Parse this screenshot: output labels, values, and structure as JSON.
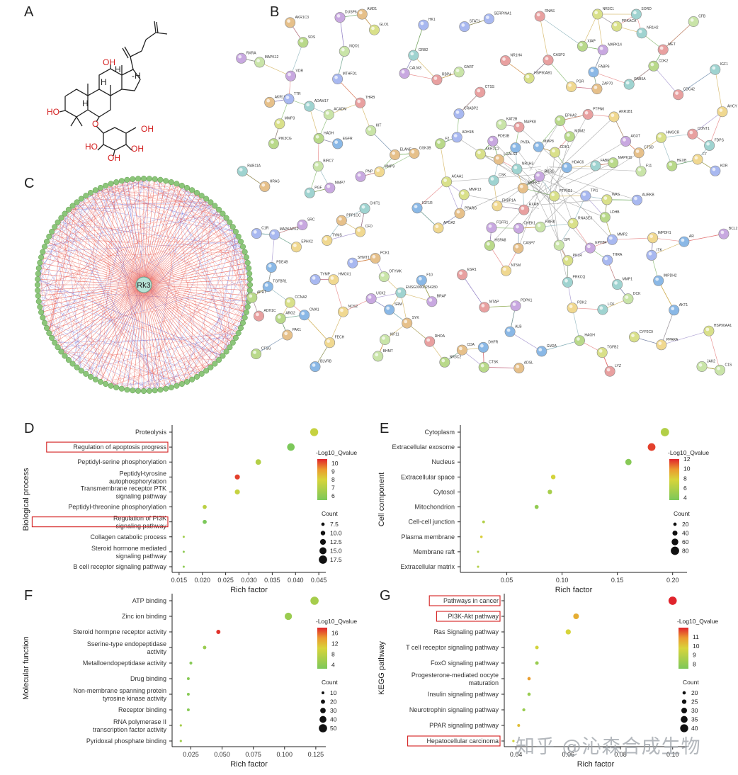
{
  "panel_letters": {
    "a": "A",
    "b": "B",
    "c": "C",
    "d": "D",
    "e": "E",
    "f": "F",
    "g": "G"
  },
  "molecule": {
    "oh_labels": [
      "OH",
      "HO",
      "OH",
      "HO",
      "OH",
      "OH"
    ],
    "h_labels": [
      "H",
      "H",
      "H",
      "-H"
    ],
    "o_label": "O"
  },
  "hub_label": "Rk3",
  "ppi_nodes": [
    "FABP6",
    "HADH",
    "ACAA1",
    "PPARG",
    "VDR",
    "FABP4",
    "NR1H4",
    "SERPINA1",
    "F11",
    "FKBP1A",
    "CMA1",
    "LDHB",
    "PKLR",
    "PCK1",
    "RXRA",
    "NR1H3",
    "THRB",
    "THRA",
    "ACADM",
    "APOA2",
    "ALB",
    "F2",
    "TGFB2",
    "CASP7",
    "MMP7",
    "MMP1",
    "RNAS",
    "TPI1",
    "GPI",
    "PPARA",
    "TGFBR1",
    "XIAP",
    "MMP3",
    "ELANE",
    "RXRG",
    "NR1H2",
    "RXRB",
    "MMP2",
    "BIRC7",
    "MMP9",
    "MMP8",
    "CTSG",
    "RNASE3",
    "AKR1C1",
    "PDE3B",
    "IGF1",
    "CASP3",
    "CRABP2",
    "RARA",
    "PDK2",
    "IGF1R",
    "EPHA2",
    "AKR1C2",
    "AKR1C3",
    "PDPK1",
    "PRKCQ",
    "RHOA",
    "HK1",
    "KAT2B",
    "PGR",
    "AKT1",
    "PIK3CG",
    "PTPN11",
    "SYK",
    "DUSP6",
    "CSK",
    "ADH1C",
    "ADH1B",
    "CFB",
    "CFD",
    "HDAC6",
    "NR3C2",
    "HSP90AA1",
    "MAPK1",
    "SRC",
    "GRB2",
    "MAPK8",
    "MAPKAPK2",
    "MAPK12",
    "IMPDH1",
    "IMPDH2",
    "HSPA8",
    "HSP90AB1",
    "ZAP70",
    "MAPK14",
    "SORD",
    "RBP4",
    "TTR",
    "BHMT",
    "AHCY",
    "AR",
    "MDM2",
    "NR3C1",
    "HRAS",
    "FGFR1",
    "LCK",
    "MET",
    "STAT1",
    "JAK2",
    "HMOX1",
    "BLVRB",
    "CTSK",
    "MMP13",
    "GSK3B",
    "CHEK1",
    "RAB11A",
    "ESR1",
    "KDR",
    "NQO1",
    "AKR1B1",
    "GM2A",
    "HEXB",
    "CDK1",
    "ADSL",
    "BCL2",
    "RAB5A",
    "CDC42",
    "ITK",
    "KIT",
    "FECH",
    "DHFR",
    "CDK2",
    "CCNA2",
    "PPP1CC",
    "BRAF",
    "PGF",
    "PTPN6",
    "AURKB",
    "KIF11",
    "NOS2",
    "EGFR",
    "MAPK10",
    "WAS",
    "PAK1",
    "EPHB4",
    "ENSG00000254280",
    "CONT1",
    "MTHFD1",
    "GART",
    "TYMS",
    "PNTA",
    "ARG2",
    "PRKACA",
    "LGALS3",
    "CALM3",
    "ADAM17",
    "CTSS",
    "SHMT1",
    "OTYMK",
    "NT5M",
    "PDE4B",
    "HAGH",
    "GLO1",
    "CTSD",
    "AGXT",
    "FDPS",
    "MTAP",
    "TYMP",
    "DCK",
    "F7",
    "F10",
    "SDS",
    "HMGCR",
    "CDA",
    "PNP",
    "CHIT1",
    "LYZ",
    "C1R",
    "C1S",
    "EPHX2",
    "SRM",
    "APRT",
    "CYP2C9",
    "AMD1",
    "UCK2"
  ],
  "chart_data": [
    {
      "panel": "D",
      "type": "scatter",
      "xlabel": "Rich factor",
      "ylabel": "Biological process",
      "xticks": [
        "0.015",
        "0.020",
        "0.025",
        "0.030",
        "0.035",
        "0.040",
        "0.045"
      ],
      "xlim": [
        0.0135,
        0.0465
      ],
      "categories": [
        "Proteolysis",
        "Regulation of apoptosis progress",
        "Peptidyl-serine phosphorylation",
        "Peptidyl-tyrosine autophosphorylation",
        "Transmembrane receptor PTK signaling pathway",
        "Peptidyl-threonine phosphorylation",
        "Regulation of PI3K signaling pathway",
        "Collagen catabolic process",
        "Steroid hormone mediated signaling pathway",
        "B cell receptor signaling pathway"
      ],
      "boxed": [
        false,
        true,
        false,
        false,
        false,
        false,
        true,
        false,
        false,
        false
      ],
      "x": [
        0.044,
        0.039,
        0.032,
        0.0275,
        0.0275,
        0.0205,
        0.0205,
        0.016,
        0.016,
        0.016
      ],
      "count": [
        17,
        16,
        12,
        11,
        11,
        9,
        9,
        5,
        5,
        5
      ],
      "qvalue": [
        7.5,
        5.5,
        7,
        10.2,
        7.5,
        7.2,
        5.5,
        6.5,
        6,
        6
      ],
      "color_title": "-Log10_Qvalue",
      "color_ticks": [
        "10",
        "9",
        "8",
        "7",
        "6"
      ],
      "color_range": [
        5.5,
        10.5
      ],
      "size_title": "Count",
      "size_ticks": [
        "7.5",
        "10.0",
        "12.5",
        "15.0",
        "17.5"
      ],
      "size_range": [
        5,
        18
      ]
    },
    {
      "panel": "E",
      "type": "scatter",
      "xlabel": "Rich factor",
      "ylabel": "Cell component",
      "xticks": [
        "0.05",
        "0.10",
        "0.15",
        "0.20"
      ],
      "xlim": [
        0.008,
        0.213
      ],
      "categories": [
        "Cytoplasm",
        "Extracellular exosome",
        "Nucleus",
        "Extracellular space",
        "Cytosol",
        "Mitochondrion",
        "Cell-cell junction",
        "Plasma membrane",
        "Membrane raft",
        "Extracellular matrix"
      ],
      "boxed": [
        false,
        false,
        false,
        false,
        false,
        false,
        false,
        false,
        false,
        false
      ],
      "x": [
        0.193,
        0.181,
        0.16,
        0.092,
        0.089,
        0.077,
        0.029,
        0.027,
        0.024,
        0.024
      ],
      "count": [
        80,
        72,
        55,
        35,
        33,
        28,
        12,
        10,
        6,
        6
      ],
      "qvalue": [
        6,
        11.5,
        4,
        7.5,
        5.5,
        4.5,
        6,
        8,
        6,
        6
      ],
      "color_title": "-Log10_Qvalue",
      "color_ticks": [
        "12",
        "10",
        "8",
        "6",
        "4"
      ],
      "color_range": [
        3.5,
        12
      ],
      "size_title": "Count",
      "size_ticks": [
        "20",
        "40",
        "60",
        "80"
      ],
      "size_range": [
        5,
        82
      ]
    },
    {
      "panel": "F",
      "type": "scatter",
      "xlabel": "Rich factor",
      "ylabel": "Molecular function",
      "xticks": [
        "0.025",
        "0.050",
        "0.075",
        "0.100",
        "0.125"
      ],
      "xlim": [
        0.01,
        0.133
      ],
      "categories": [
        "ATP binding",
        "Zinc ion binding",
        "Steroid hormpne receptor activity",
        "Sserine-type endopeptidase activity",
        "Metalloendopeptidase activity",
        "Drug binding",
        "Non-membrane spanning protein tyrosine kinase activity",
        "Receptor binding",
        "RNA polymerase II transcription factor activity",
        "Pyridoxal phosphate binding"
      ],
      "boxed": [
        false,
        false,
        false,
        false,
        false,
        false,
        false,
        false,
        false,
        false
      ],
      "x": [
        0.124,
        0.103,
        0.047,
        0.036,
        0.025,
        0.023,
        0.023,
        0.023,
        0.017,
        0.017
      ],
      "count": [
        50,
        43,
        20,
        15,
        11,
        10,
        10,
        10,
        6,
        6
      ],
      "qvalue": [
        6,
        5,
        17.5,
        5,
        3.5,
        3.5,
        3.5,
        3.5,
        6,
        5.5
      ],
      "color_title": "-Log10_Qvalue",
      "color_ticks": [
        "16",
        "12",
        "8",
        "4"
      ],
      "color_range": [
        2.5,
        18
      ],
      "size_title": "Count",
      "size_ticks": [
        "10",
        "20",
        "30",
        "40",
        "50"
      ],
      "size_range": [
        5,
        52
      ]
    },
    {
      "panel": "G",
      "type": "scatter",
      "xlabel": "Rich factor",
      "ylabel": "KEGG pathway",
      "xticks": [
        "0.04",
        "0.06",
        "0.08",
        "0.10"
      ],
      "xlim": [
        0.0355,
        0.1055
      ],
      "categories": [
        "Pathways in cancer",
        "PI3K-Akt pathway",
        "Ras Signaling pathway",
        "T cell receptor signaling pathway",
        "FoxO signaling pathway",
        "Progesterone-mediated oocyte maturation",
        "Insulin signaling pathway",
        "Neurotrophin signaling pathway",
        "PPAR signaling pathway",
        "Hepatocellular carcinoma"
      ],
      "boxed": [
        true,
        true,
        false,
        false,
        false,
        false,
        false,
        false,
        false,
        true
      ],
      "x": [
        0.1,
        0.063,
        0.06,
        0.048,
        0.048,
        0.045,
        0.045,
        0.043,
        0.041,
        0.039
      ],
      "count": [
        41,
        30,
        28,
        21,
        21,
        20,
        20,
        19,
        18,
        16
      ],
      "qvalue": [
        12,
        10.5,
        9.7,
        9.6,
        8.2,
        10.8,
        8.2,
        8.2,
        10.2,
        9.6
      ],
      "color_title": "-Log10_Qvalue",
      "color_ticks": [
        "11",
        "10",
        "9",
        "8"
      ],
      "color_range": [
        7.5,
        12
      ],
      "size_title": "Count",
      "size_ticks": [
        "20",
        "25",
        "30",
        "35",
        "40"
      ],
      "size_range": [
        15,
        42
      ]
    }
  ],
  "watermark": "知乎 @沁森合成生物"
}
